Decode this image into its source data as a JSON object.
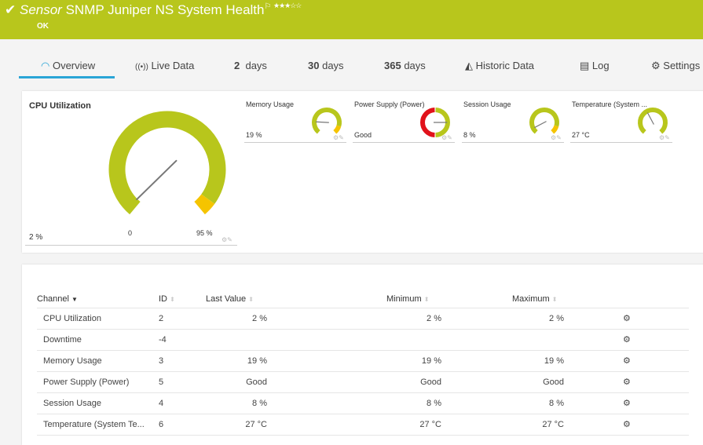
{
  "header": {
    "prefix": "Sensor",
    "title": "SNMP Juniper NS System Health",
    "status": "OK",
    "flag_icon": "flag-icon",
    "stars": "★★★☆☆",
    "rating": 3,
    "color": "#b8c61c"
  },
  "tabs": [
    {
      "label": "Overview",
      "icon": "gauge-icon",
      "active": true
    },
    {
      "label": "Live Data",
      "icon": "broadcast-icon"
    },
    {
      "num": "2",
      "label": "days"
    },
    {
      "num": "30",
      "label": "days"
    },
    {
      "num": "365",
      "label": "days"
    },
    {
      "label": "Historic Data",
      "icon": "area-chart-icon"
    },
    {
      "label": "Log",
      "icon": "list-icon"
    },
    {
      "label": "Settings",
      "icon": "gear-icon"
    }
  ],
  "main_gauge": {
    "label": "CPU Utilization",
    "value": "2 %",
    "percent": 2,
    "min_label": "0",
    "max_label": "95 %",
    "warn_from": 95
  },
  "mini_gauges": [
    {
      "label": "Memory Usage",
      "value": "19 %",
      "percent": 19,
      "warn_from": 88
    },
    {
      "label": "Power Supply (Power)",
      "value": "Good",
      "percent": 50,
      "type": "lookup"
    },
    {
      "label": "Session Usage",
      "value": "8 %",
      "percent": 8,
      "warn_from": 88
    },
    {
      "label": "Temperature (System ...",
      "value": "27 °C",
      "percent": 40
    }
  ],
  "colors": {
    "ok": "#b8c61c",
    "warn": "#f5c400",
    "error": "#e1121b"
  },
  "table": {
    "headers": [
      "Channel",
      "ID",
      "Last Value",
      "Minimum",
      "Maximum"
    ],
    "rows": [
      [
        "CPU Utilization",
        "2",
        "2 %",
        "2 %",
        "2 %"
      ],
      [
        "Downtime",
        "-4",
        "",
        "",
        ""
      ],
      [
        "Memory Usage",
        "3",
        "19 %",
        "19 %",
        "19 %"
      ],
      [
        "Power Supply (Power)",
        "5",
        "Good",
        "Good",
        "Good"
      ],
      [
        "Session Usage",
        "4",
        "8 %",
        "8 %",
        "8 %"
      ],
      [
        "Temperature (System Te...",
        "6",
        "27 °C",
        "27 °C",
        "27 °C"
      ]
    ]
  }
}
